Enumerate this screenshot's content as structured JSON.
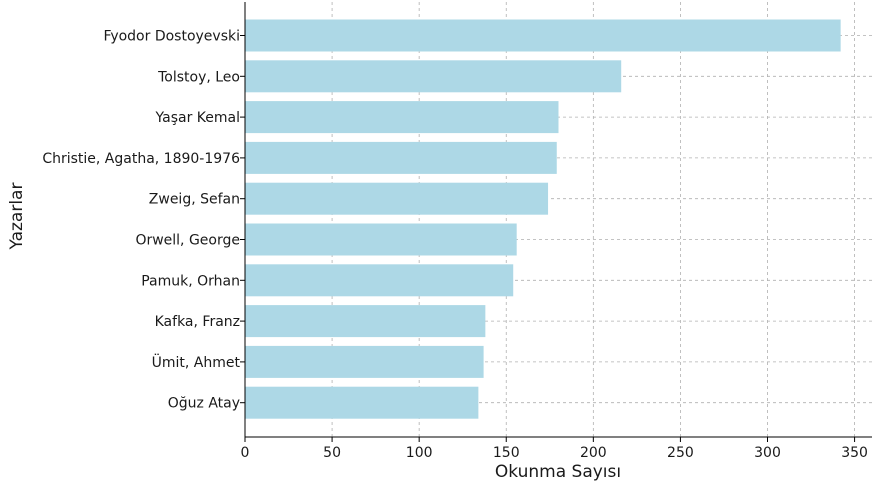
{
  "chart_data": {
    "type": "bar",
    "orientation": "horizontal",
    "title": "",
    "xlabel": "Okunma Sayısı",
    "ylabel": "Yazarlar",
    "categories": [
      "Fyodor Dostoyevski",
      "Tolstoy, Leo",
      "Yaşar Kemal",
      "Christie, Agatha, 1890-1976",
      "Zweig, Sefan",
      "Orwell, George",
      "Pamuk, Orhan",
      "Kafka, Franz",
      "Ümit, Ahmet",
      "Oğuz Atay"
    ],
    "values": [
      342,
      216,
      180,
      179,
      174,
      156,
      154,
      138,
      137,
      134
    ],
    "xlim": [
      0,
      360
    ],
    "xticks": [
      0,
      50,
      100,
      150,
      200,
      250,
      300,
      350
    ],
    "grid": true,
    "bar_color": "#add8e6",
    "grid_color": "#b0b0b0",
    "axis_color": "#000000"
  }
}
